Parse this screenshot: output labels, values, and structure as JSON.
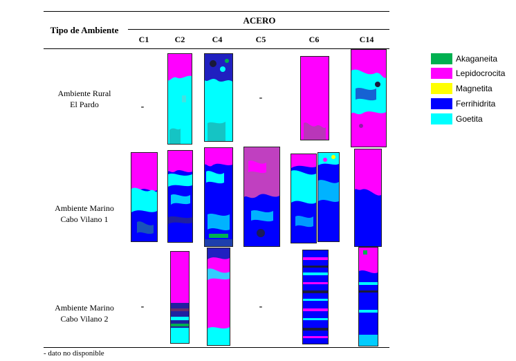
{
  "table": {
    "env_header": "Tipo de Ambiente",
    "group_header": "ACERO",
    "columns": [
      "C1",
      "C2",
      "C4",
      "C5",
      "C6",
      "C14"
    ],
    "rows": [
      {
        "label_line1": "Ambiente Rural",
        "label_line2": "El Pardo"
      },
      {
        "label_line1": "Ambiente Marino",
        "label_line2": "Cabo Vilano 1"
      },
      {
        "label_line1": "Ambiente Marino",
        "label_line2": "Cabo Vilano 2"
      }
    ],
    "missing_mark": "-",
    "footnote": "- dato no disponible"
  },
  "legend": [
    {
      "label": "Akaganeita",
      "color": "#00b050"
    },
    {
      "label": "Lepidocrocita",
      "color": "#ff00ff"
    },
    {
      "label": "Magnetita",
      "color": "#ffff00"
    },
    {
      "label": "Ferrihidrita",
      "color": "#0000ff"
    },
    {
      "label": "Goetita",
      "color": "#00ffff"
    }
  ]
}
